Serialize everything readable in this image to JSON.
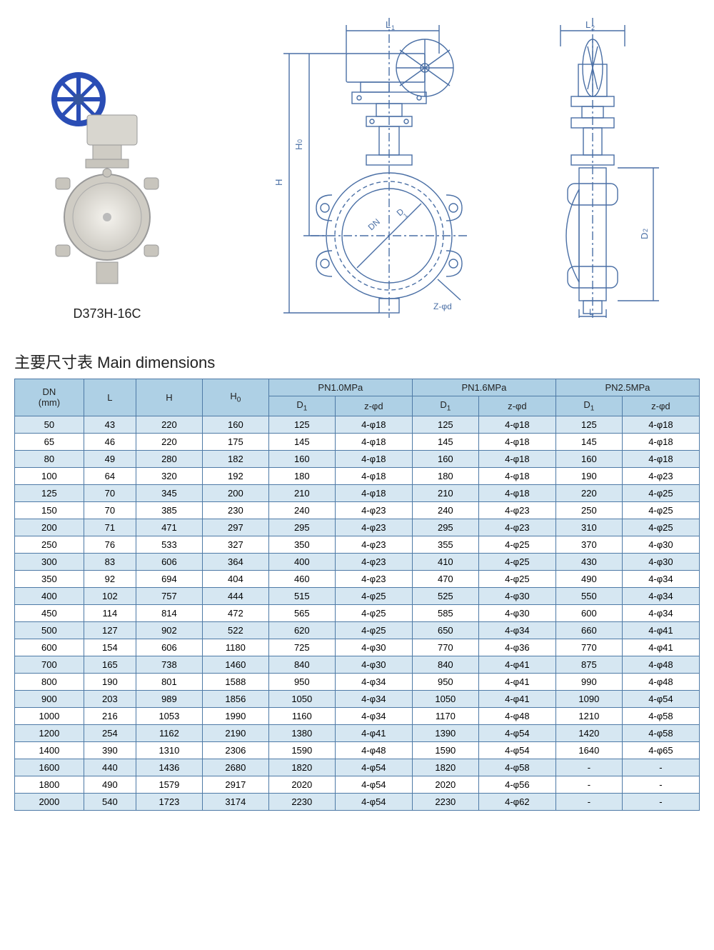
{
  "product_label": "D373H-16C",
  "title": "主要尺寸表 Main dimensions",
  "diagram_labels": {
    "L1": "L₁",
    "L2": "L₂",
    "H": "H",
    "H0": "H₀",
    "D1": "D₁",
    "D2": "D₂",
    "DN": "DN",
    "Zphid": "Z-φd",
    "L": "L"
  },
  "table": {
    "header_row1": [
      "DN\n(mm)",
      "L",
      "H",
      "H₀",
      "PN1.0MPa",
      "PN1.6MPa",
      "PN2.5MPa"
    ],
    "header_row2": [
      "D₁",
      "z-φd",
      "D₁",
      "z-φd",
      "D₁",
      "z-φd"
    ],
    "rows": [
      [
        "50",
        "43",
        "220",
        "160",
        "125",
        "4-φ18",
        "125",
        "4-φ18",
        "125",
        "4-φ18"
      ],
      [
        "65",
        "46",
        "220",
        "175",
        "145",
        "4-φ18",
        "145",
        "4-φ18",
        "145",
        "4-φ18"
      ],
      [
        "80",
        "49",
        "280",
        "182",
        "160",
        "4-φ18",
        "160",
        "4-φ18",
        "160",
        "4-φ18"
      ],
      [
        "100",
        "64",
        "320",
        "192",
        "180",
        "4-φ18",
        "180",
        "4-φ18",
        "190",
        "4-φ23"
      ],
      [
        "125",
        "70",
        "345",
        "200",
        "210",
        "4-φ18",
        "210",
        "4-φ18",
        "220",
        "4-φ25"
      ],
      [
        "150",
        "70",
        "385",
        "230",
        "240",
        "4-φ23",
        "240",
        "4-φ23",
        "250",
        "4-φ25"
      ],
      [
        "200",
        "71",
        "471",
        "297",
        "295",
        "4-φ23",
        "295",
        "4-φ23",
        "310",
        "4-φ25"
      ],
      [
        "250",
        "76",
        "533",
        "327",
        "350",
        "4-φ23",
        "355",
        "4-φ25",
        "370",
        "4-φ30"
      ],
      [
        "300",
        "83",
        "606",
        "364",
        "400",
        "4-φ23",
        "410",
        "4-φ25",
        "430",
        "4-φ30"
      ],
      [
        "350",
        "92",
        "694",
        "404",
        "460",
        "4-φ23",
        "470",
        "4-φ25",
        "490",
        "4-φ34"
      ],
      [
        "400",
        "102",
        "757",
        "444",
        "515",
        "4-φ25",
        "525",
        "4-φ30",
        "550",
        "4-φ34"
      ],
      [
        "450",
        "114",
        "814",
        "472",
        "565",
        "4-φ25",
        "585",
        "4-φ30",
        "600",
        "4-φ34"
      ],
      [
        "500",
        "127",
        "902",
        "522",
        "620",
        "4-φ25",
        "650",
        "4-φ34",
        "660",
        "4-φ41"
      ],
      [
        "600",
        "154",
        "606",
        "1180",
        "725",
        "4-φ30",
        "770",
        "4-φ36",
        "770",
        "4-φ41"
      ],
      [
        "700",
        "165",
        "738",
        "1460",
        "840",
        "4-φ30",
        "840",
        "4-φ41",
        "875",
        "4-φ48"
      ],
      [
        "800",
        "190",
        "801",
        "1588",
        "950",
        "4-φ34",
        "950",
        "4-φ41",
        "990",
        "4-φ48"
      ],
      [
        "900",
        "203",
        "989",
        "1856",
        "1050",
        "4-φ34",
        "1050",
        "4-φ41",
        "1090",
        "4-φ54"
      ],
      [
        "1000",
        "216",
        "1053",
        "1990",
        "1160",
        "4-φ34",
        "1170",
        "4-φ48",
        "1210",
        "4-φ58"
      ],
      [
        "1200",
        "254",
        "1162",
        "2190",
        "1380",
        "4-φ41",
        "1390",
        "4-φ54",
        "1420",
        "4-φ58"
      ],
      [
        "1400",
        "390",
        "1310",
        "2306",
        "1590",
        "4-φ48",
        "1590",
        "4-φ54",
        "1640",
        "4-φ65"
      ],
      [
        "1600",
        "440",
        "1436",
        "2680",
        "1820",
        "4-φ54",
        "1820",
        "4-φ58",
        "-",
        "-"
      ],
      [
        "1800",
        "490",
        "1579",
        "2917",
        "2020",
        "4-φ54",
        "2020",
        "4-φ56",
        "-",
        "-"
      ],
      [
        "2000",
        "540",
        "1723",
        "3174",
        "2230",
        "4-φ54",
        "2230",
        "4-φ62",
        "-",
        "-"
      ]
    ]
  },
  "colors": {
    "header_bg": "#aed0e5",
    "row_alt_bg": "#d6e7f2",
    "border": "#4e7aa6",
    "drawing_stroke": "#4a6fa5",
    "wheel": "#2a4db5",
    "body": "#d0cfcb"
  }
}
